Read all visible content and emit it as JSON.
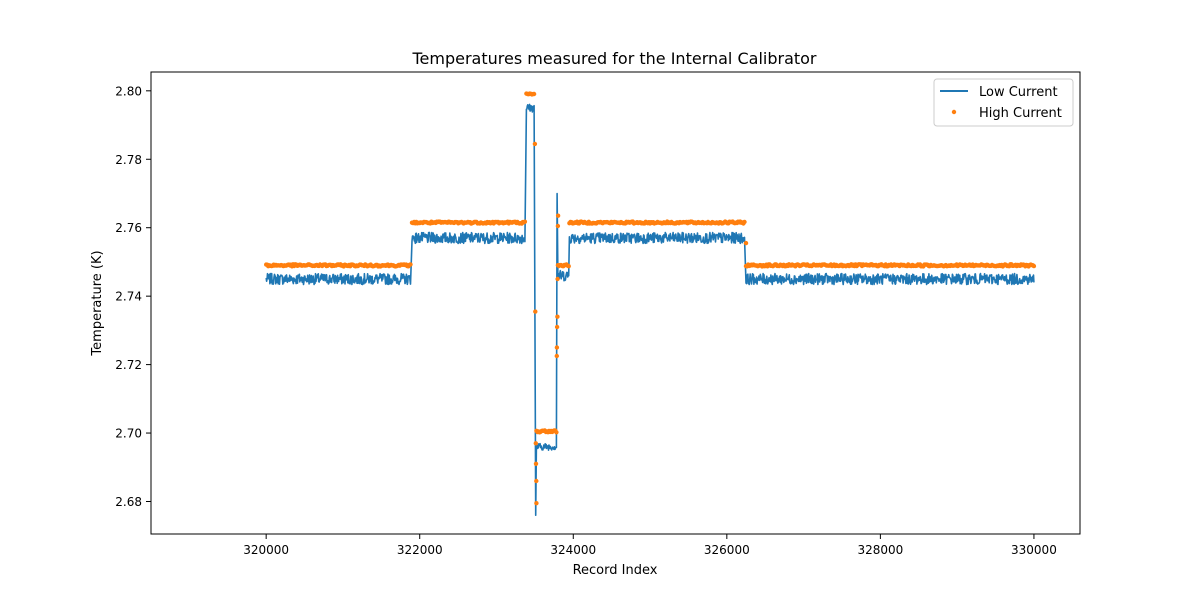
{
  "chart_data": {
    "type": "line",
    "title": "Temperatures measured for the Internal Calibrator",
    "xlabel": "Record Index",
    "ylabel": "Temperature (K)",
    "xlim": [
      318500,
      330600
    ],
    "ylim": [
      2.6705,
      2.8055
    ],
    "x_ticks": [
      320000,
      322000,
      324000,
      326000,
      328000,
      330000
    ],
    "y_ticks": [
      2.68,
      2.7,
      2.72,
      2.74,
      2.76,
      2.78,
      2.8
    ],
    "x_tick_labels": [
      "320000",
      "322000",
      "324000",
      "326000",
      "328000",
      "330000"
    ],
    "y_tick_labels": [
      "2.68",
      "2.70",
      "2.72",
      "2.74",
      "2.76",
      "2.78",
      "2.80"
    ],
    "grid": false,
    "legend_position": "top-right",
    "series": [
      {
        "name": "Low Current",
        "kind": "line",
        "color": "#1f77b4",
        "segments": [
          {
            "x_start": 320000,
            "x_end": 321880,
            "level": 2.745,
            "noise": 0.0016
          },
          {
            "x_start": 321900,
            "x_end": 323370,
            "level": 2.757,
            "noise": 0.0016
          },
          {
            "x_start": 323390,
            "x_end": 323490,
            "level": 2.795,
            "noise": 0.0012
          },
          {
            "x_start": 323520,
            "x_end": 323780,
            "level": 2.696,
            "noise": 0.001
          },
          {
            "x_start": 323800,
            "x_end": 323940,
            "level": 2.746,
            "noise": 0.0016
          },
          {
            "x_start": 323950,
            "x_end": 326230,
            "level": 2.757,
            "noise": 0.0016
          },
          {
            "x_start": 326250,
            "x_end": 330000,
            "level": 2.745,
            "noise": 0.0016
          }
        ],
        "spikes": [
          {
            "x": 323510,
            "y": 2.676
          },
          {
            "x": 323790,
            "y": 2.77
          }
        ]
      },
      {
        "name": "High Current",
        "kind": "scatter",
        "color": "#ff7f0e",
        "segments": [
          {
            "x_start": 320000,
            "x_end": 321880,
            "level": 2.749
          },
          {
            "x_start": 321900,
            "x_end": 323370,
            "level": 2.7615
          },
          {
            "x_start": 323390,
            "x_end": 323490,
            "level": 2.799
          },
          {
            "x_start": 323520,
            "x_end": 323780,
            "level": 2.7005
          },
          {
            "x_start": 323800,
            "x_end": 323940,
            "level": 2.749
          },
          {
            "x_start": 323950,
            "x_end": 326230,
            "level": 2.7615
          },
          {
            "x_start": 326250,
            "x_end": 330000,
            "level": 2.749
          }
        ],
        "transition_points": [
          {
            "x": 323500,
            "y": 2.7845
          },
          {
            "x": 323505,
            "y": 2.7355
          },
          {
            "x": 323512,
            "y": 2.697
          },
          {
            "x": 323515,
            "y": 2.691
          },
          {
            "x": 323518,
            "y": 2.686
          },
          {
            "x": 323520,
            "y": 2.6795
          },
          {
            "x": 323785,
            "y": 2.7225
          },
          {
            "x": 323787,
            "y": 2.725
          },
          {
            "x": 323790,
            "y": 2.731
          },
          {
            "x": 323793,
            "y": 2.734
          },
          {
            "x": 323796,
            "y": 2.745
          },
          {
            "x": 323800,
            "y": 2.7605
          },
          {
            "x": 323803,
            "y": 2.7635
          },
          {
            "x": 326250,
            "y": 2.7555
          }
        ]
      }
    ]
  }
}
